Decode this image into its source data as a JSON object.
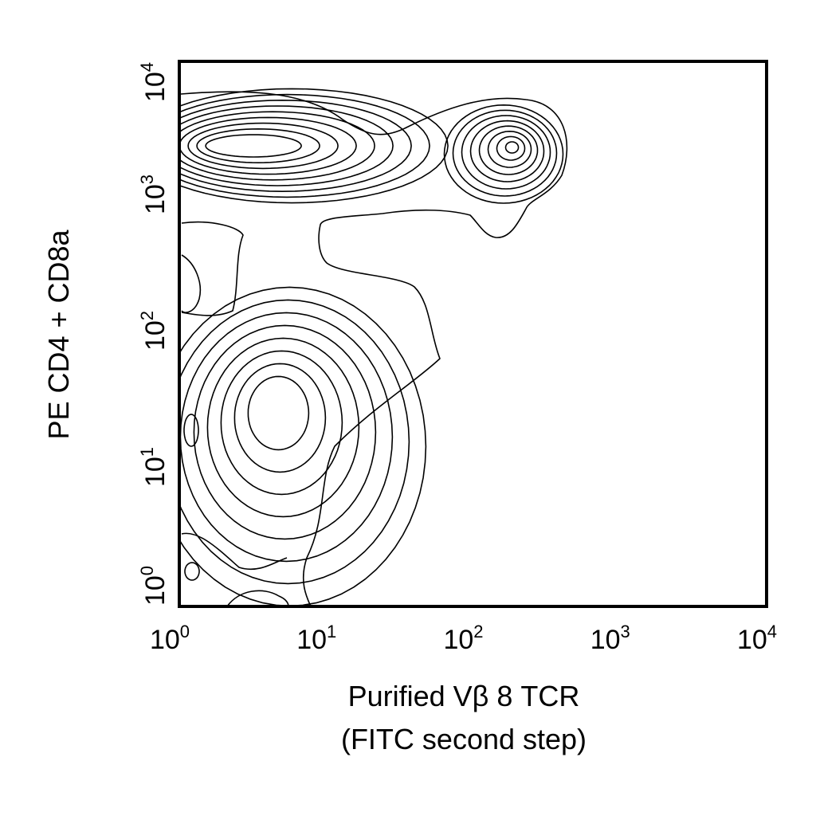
{
  "chart_data": {
    "type": "contour",
    "xlabel": [
      "Purified Vβ 8 TCR",
      "(FITC second step)"
    ],
    "ylabel": "PE CD4 + CD8a",
    "x_scale": "log",
    "y_scale": "log",
    "xlim": [
      1,
      10000
    ],
    "ylim": [
      1,
      10000
    ],
    "tick_base": "10",
    "x_ticks": [
      {
        "value": 1,
        "exp": "0"
      },
      {
        "value": 10,
        "exp": "1"
      },
      {
        "value": 100,
        "exp": "2"
      },
      {
        "value": 1000,
        "exp": "3"
      },
      {
        "value": 10000,
        "exp": "4"
      }
    ],
    "y_ticks": [
      {
        "value": 1,
        "exp": "0"
      },
      {
        "value": 10,
        "exp": "1"
      },
      {
        "value": 100,
        "exp": "2"
      },
      {
        "value": 1000,
        "exp": "3"
      },
      {
        "value": 10000,
        "exp": "4"
      }
    ],
    "grid": false,
    "populations": [
      {
        "cx": 3.2,
        "cy": 2400,
        "levels": 9
      },
      {
        "cx": 180,
        "cy": 2400,
        "levels": 8
      },
      {
        "cx": 4.5,
        "cy": 30,
        "levels": 8
      }
    ]
  }
}
